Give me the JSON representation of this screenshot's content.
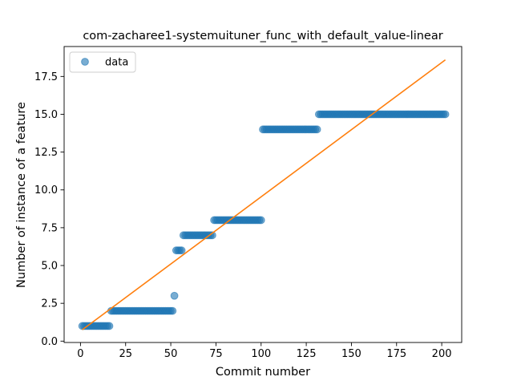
{
  "chart_data": {
    "type": "scatter",
    "title": "com-zacharee1-systemuituner_func_with_default_value-linear",
    "xlabel": "Commit number",
    "ylabel": "Number of instance of a feature",
    "xlim": [
      -9.05,
      211.05
    ],
    "ylim": [
      -0.09,
      19.48
    ],
    "xticks": [
      0,
      25,
      50,
      75,
      100,
      125,
      150,
      175,
      200
    ],
    "yticks": [
      0.0,
      2.5,
      5.0,
      7.5,
      10.0,
      12.5,
      15.0,
      17.5
    ],
    "xtick_labels": [
      "0",
      "25",
      "50",
      "75",
      "100",
      "125",
      "150",
      "175",
      "200"
    ],
    "ytick_labels": [
      "0.0",
      "2.5",
      "5.0",
      "7.5",
      "10.0",
      "12.5",
      "15.0",
      "17.5"
    ],
    "grid": false,
    "legend_position": "upper-left",
    "series": [
      {
        "name": "data",
        "kind": "scatter",
        "color": "#1f77b4",
        "segments": [
          {
            "x_start": 1,
            "x_end": 16,
            "y": 1
          },
          {
            "x_start": 17,
            "x_end": 51,
            "y": 2
          },
          {
            "x_start": 52,
            "x_end": 52,
            "y": 3
          },
          {
            "x_start": 53,
            "x_end": 56,
            "y": 6
          },
          {
            "x_start": 57,
            "x_end": 73,
            "y": 7
          },
          {
            "x_start": 74,
            "x_end": 100,
            "y": 8
          },
          {
            "x_start": 101,
            "x_end": 131,
            "y": 14
          },
          {
            "x_start": 132,
            "x_end": 202,
            "y": 15
          }
        ]
      },
      {
        "kind": "line",
        "color": "#ff7f0e",
        "x": [
          1,
          202
        ],
        "y": [
          0.75,
          18.6
        ]
      }
    ]
  }
}
